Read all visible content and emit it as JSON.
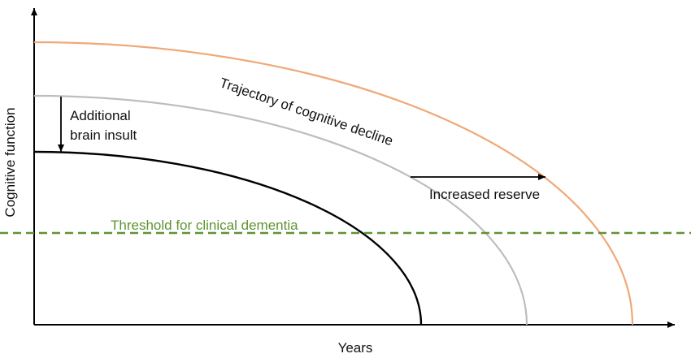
{
  "axes": {
    "y_label": "Cognitive function",
    "x_label": "Years"
  },
  "annotations": {
    "trajectory": "Trajectory of cognitive decline",
    "insult": [
      "Additional",
      "brain insult"
    ],
    "reserve": "Increased reserve",
    "threshold": "Threshold for clinical dementia"
  }
}
